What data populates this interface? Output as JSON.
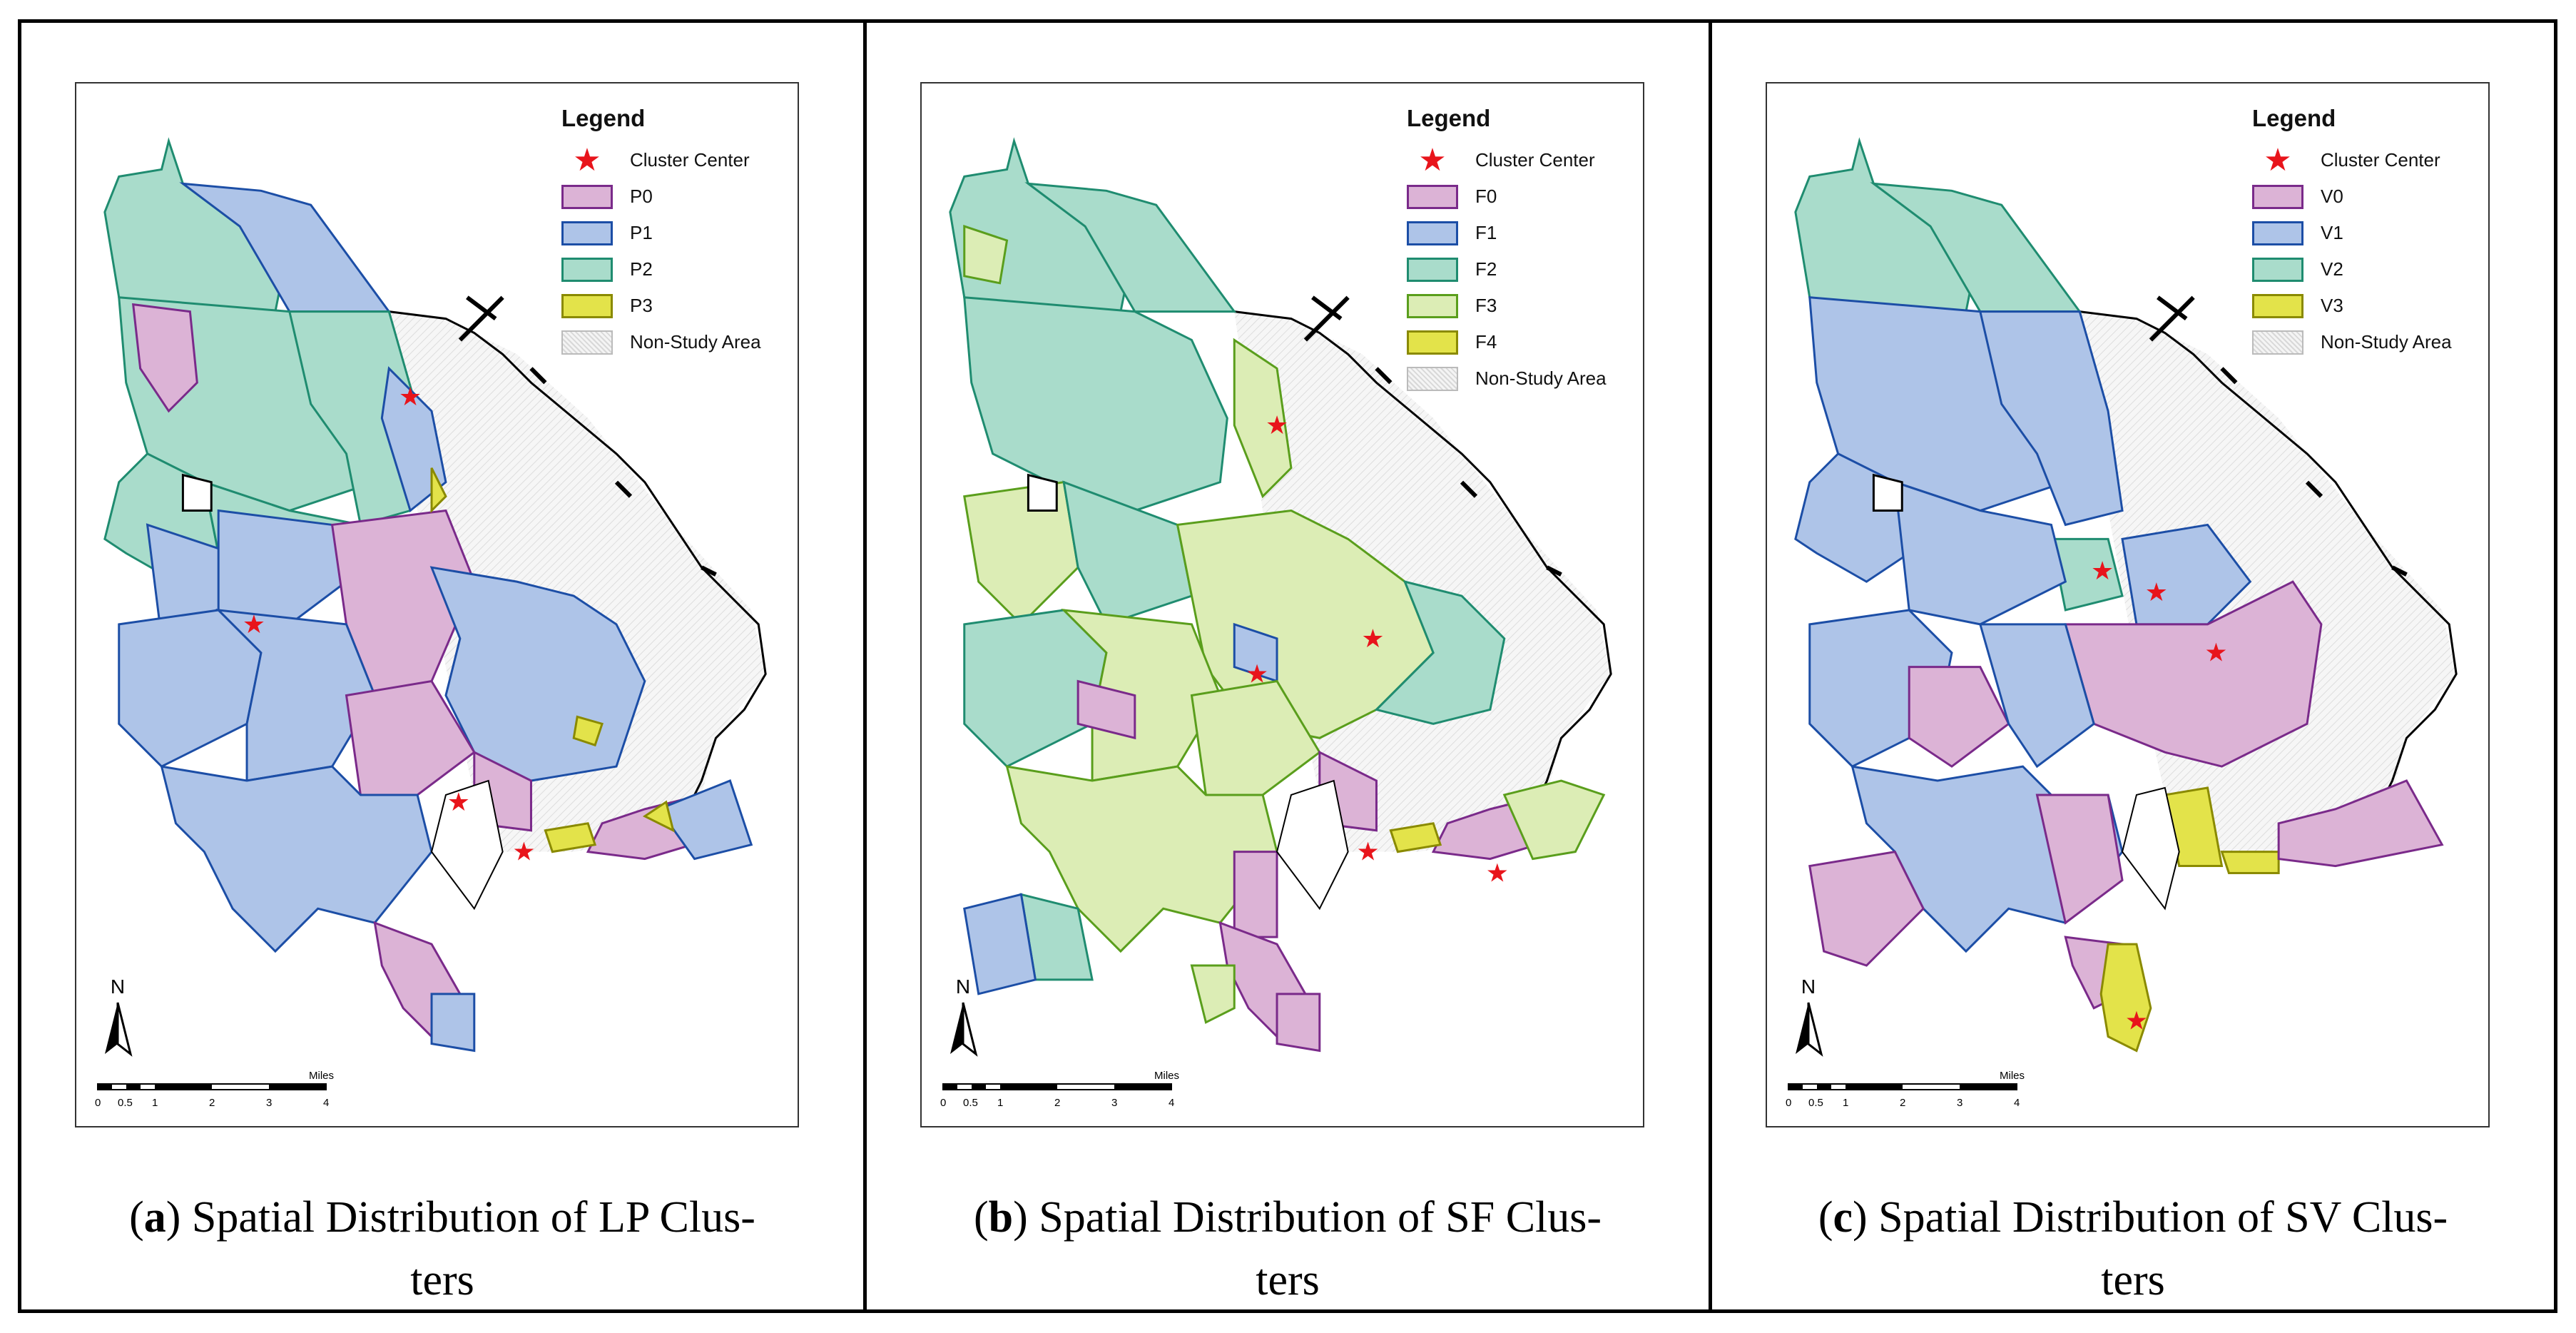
{
  "colors": {
    "star": "#e8141b",
    "pink_fill": "#dcb3d6",
    "pink_line": "#7a2a8a",
    "blue_fill": "#aec4e8",
    "blue_line": "#1c4ea6",
    "teal_fill": "#a9dccb",
    "teal_line": "#1f8c70",
    "lightgreen_fill": "#dcedb5",
    "lightgreen_line": "#5a9e1c",
    "yellow_fill": "#e3e34a",
    "yellow_line": "#8a8a00",
    "nonstudy": "#eeeeee"
  },
  "scale": {
    "ticks": [
      "0",
      "0.5",
      "1",
      "2",
      "3",
      "4"
    ],
    "unit": "Miles"
  },
  "north_label": "N",
  "panels": [
    {
      "letter": "a",
      "caption_rest": ") Spatial Distribution of LP Clus-",
      "caption_line2": "ters",
      "legend_title": "Legend",
      "legend": [
        {
          "label": "Cluster Center",
          "kind": "star"
        },
        {
          "label": "P0",
          "kind": "fill",
          "fill": "#dcb3d6",
          "stroke": "#7a2a8a"
        },
        {
          "label": "P1",
          "kind": "fill",
          "fill": "#aec4e8",
          "stroke": "#1c4ea6"
        },
        {
          "label": "P2",
          "kind": "fill",
          "fill": "#a9dccb",
          "stroke": "#1f8c70"
        },
        {
          "label": "P3",
          "kind": "fill",
          "fill": "#e3e34a",
          "stroke": "#8a8a00"
        },
        {
          "label": "Non-Study Area",
          "kind": "hatch"
        }
      ]
    },
    {
      "letter": "b",
      "caption_rest": ") Spatial Distribution of SF Clus-",
      "caption_line2": "ters",
      "legend_title": "Legend",
      "legend": [
        {
          "label": "Cluster Center",
          "kind": "star"
        },
        {
          "label": "F0",
          "kind": "fill",
          "fill": "#dcb3d6",
          "stroke": "#7a2a8a"
        },
        {
          "label": "F1",
          "kind": "fill",
          "fill": "#aec4e8",
          "stroke": "#1c4ea6"
        },
        {
          "label": "F2",
          "kind": "fill",
          "fill": "#a9dccb",
          "stroke": "#1f8c70"
        },
        {
          "label": "F3",
          "kind": "fill",
          "fill": "#dcedb5",
          "stroke": "#5a9e1c"
        },
        {
          "label": "F4",
          "kind": "fill",
          "fill": "#e3e34a",
          "stroke": "#8a8a00"
        },
        {
          "label": "Non-Study Area",
          "kind": "hatch"
        }
      ]
    },
    {
      "letter": "c",
      "caption_rest": ") Spatial Distribution of SV Clus-",
      "caption_line2": "ters",
      "legend_title": "Legend",
      "legend": [
        {
          "label": "Cluster Center",
          "kind": "star"
        },
        {
          "label": "V0",
          "kind": "fill",
          "fill": "#dcb3d6",
          "stroke": "#7a2a8a"
        },
        {
          "label": "V1",
          "kind": "fill",
          "fill": "#aec4e8",
          "stroke": "#1c4ea6"
        },
        {
          "label": "V2",
          "kind": "fill",
          "fill": "#a9dccb",
          "stroke": "#1f8c70"
        },
        {
          "label": "V3",
          "kind": "fill",
          "fill": "#e3e34a",
          "stroke": "#8a8a00"
        },
        {
          "label": "Non-Study Area",
          "kind": "hatch"
        }
      ]
    }
  ]
}
